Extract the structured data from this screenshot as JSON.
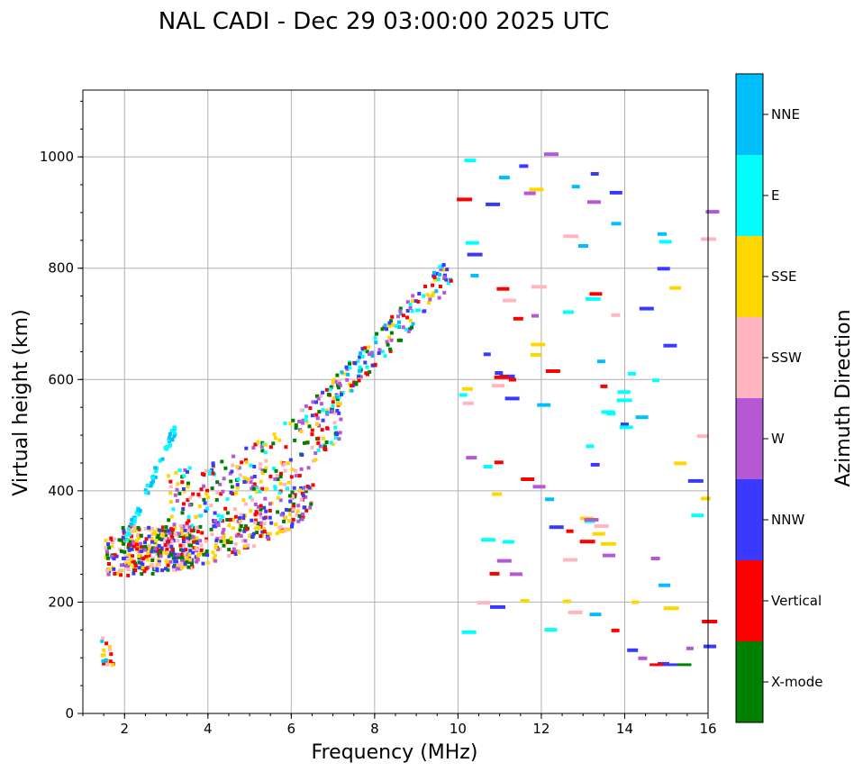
{
  "chart_data": {
    "type": "scatter",
    "title": "NAL CADI - Dec 29 03:00:00 2025 UTC",
    "xlabel": "Frequency (MHz)",
    "ylabel": "Virtual height (km)",
    "xlim": [
      1,
      16
    ],
    "ylim": [
      0,
      1120
    ],
    "xticks": [
      2,
      4,
      6,
      8,
      10,
      12,
      14,
      16
    ],
    "xtick_labels": [
      "2",
      "4",
      "6",
      "8",
      "10",
      "12",
      "14",
      "16"
    ],
    "yticks": [
      0,
      200,
      400,
      600,
      800,
      1000
    ],
    "ytick_labels": [
      "0",
      "200",
      "400",
      "600",
      "800",
      "1000"
    ],
    "grid": true,
    "colorbar": {
      "title": "Azimuth Direction",
      "categories": [
        {
          "name": "X-mode",
          "color": "#008000"
        },
        {
          "name": "Vertical",
          "color": "#ff0000"
        },
        {
          "name": "NNW",
          "color": "#3a3aff"
        },
        {
          "name": "W",
          "color": "#b458d6"
        },
        {
          "name": "SSW",
          "color": "#ffb6c1"
        },
        {
          "name": "SSE",
          "color": "#ffd700"
        },
        {
          "name": "E",
          "color": "#00ffff"
        },
        {
          "name": "NNE",
          "color": "#00bfff"
        }
      ]
    },
    "clusters": [
      {
        "id": "low-layer",
        "center_freq": 2.8,
        "center_height": 300,
        "spread_freq": 0.9,
        "spread_height": 40,
        "count": 220,
        "dir": [
          "Vertical",
          "SSE",
          "SSW",
          "NNW",
          "X-mode"
        ]
      },
      {
        "id": "f-trace-1",
        "freq_range": [
          1.5,
          6.5
        ],
        "height_range": [
          250,
          360
        ],
        "count": 380,
        "dir": [
          "SSE",
          "Vertical",
          "SSW",
          "X-mode",
          "NNW",
          "W"
        ]
      },
      {
        "id": "f-trace-2",
        "freq_range": [
          3.0,
          7.2
        ],
        "height_range": [
          360,
          560
        ],
        "count": 300,
        "dir": [
          "X-mode",
          "NNW",
          "E",
          "SSW",
          "SSE",
          "W",
          "Vertical"
        ]
      },
      {
        "id": "e-trace-blue",
        "freq_range": [
          2.0,
          3.2
        ],
        "height_range": [
          320,
          520
        ],
        "count": 60,
        "dir": [
          "NNE",
          "E"
        ]
      },
      {
        "id": "upper-trace",
        "freq_range": [
          6.8,
          9.8
        ],
        "height_range": [
          560,
          810
        ],
        "count": 160,
        "dir": [
          "W",
          "NNW",
          "SSE",
          "E",
          "NNE",
          "X-mode",
          "Vertical"
        ]
      },
      {
        "id": "sparse-high",
        "freq_range": [
          9.8,
          16
        ],
        "height_range": [
          80,
          1010
        ],
        "count": 110,
        "dir": [
          "SSE",
          "W",
          "NNW",
          "SSW",
          "Vertical",
          "NNE",
          "E"
        ]
      },
      {
        "id": "left-column",
        "freq_range": [
          1.4,
          1.7
        ],
        "height_range": [
          85,
          140
        ],
        "count": 18,
        "dir": [
          "Vertical",
          "SSE",
          "SSW",
          "NNE"
        ]
      }
    ],
    "x_mode_line": {
      "freq_range": [
        14.6,
        15.6
      ],
      "height": 90,
      "colors": [
        "Vertical",
        "NNW",
        "X-mode"
      ]
    }
  }
}
